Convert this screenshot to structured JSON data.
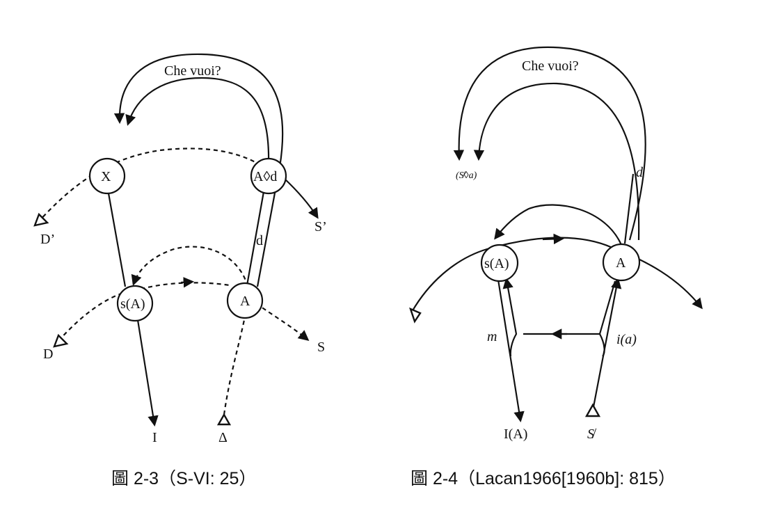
{
  "figures": [
    {
      "nodes": {
        "x": "X",
        "a_lozenge_d": "A◊d",
        "s_a": "s(A)",
        "a": "A"
      },
      "labels": {
        "che_vuoi": "Che vuoi?",
        "d_prime": "D’",
        "s_prime": "S’",
        "d_small": "d",
        "d_cap": "D",
        "s_cap": "S",
        "i_bottom": "I",
        "delta": "Δ"
      },
      "caption": "圖 2-3（S-VI: 25）"
    },
    {
      "nodes": {
        "s_a": "s(A)",
        "a": "A"
      },
      "labels": {
        "che_vuoi": "Che vuoi?",
        "barred_s_a": "(S̸◊a)",
        "d_small": "d",
        "m": "m",
        "i_a": "i(a)",
        "i_cap_a": "I(A)",
        "barred_s": "S̸"
      },
      "caption": "圖 2-4（Lacan1966[1960b]: 815）"
    }
  ]
}
